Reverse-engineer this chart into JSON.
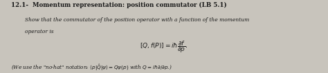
{
  "title": "12.1-  Momentum representation: position commutator (LB 5.1)",
  "line1": "Show that the commutator of the position operator with a function of the momentum",
  "line2": "operator is",
  "equation": "$[Q, f(P)] = i\\hbar\\dfrac{\\partial f}{\\partial p}$.",
  "footnote": "(We use the \"no-hat\" notation: $\\langle p|\\hat{Q}|\\psi\\rangle = Q\\psi(p)$ with $Q = i\\hbar\\partial/\\partial p$.)",
  "bg_color": "#c8c4bc",
  "text_color": "#1a1a1a",
  "title_fontsize": 6.2,
  "body_fontsize": 5.4,
  "eq_fontsize": 6.5,
  "footnote_fontsize": 5.2
}
